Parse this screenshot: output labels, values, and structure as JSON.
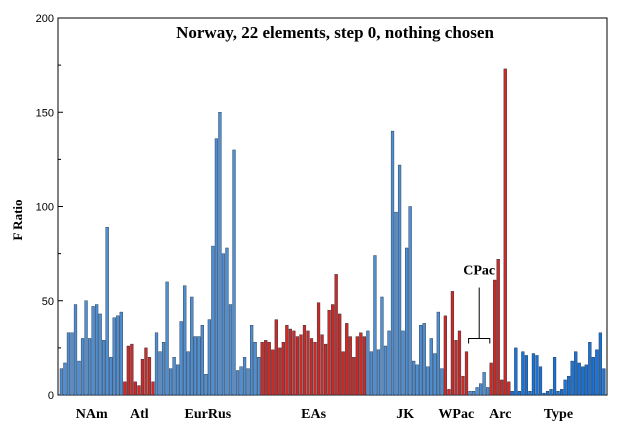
{
  "chart_data": {
    "type": "bar",
    "title": "Norway, 22 elements, step 0, nothing chosen",
    "ylabel": "F Ratio",
    "xlabel": "",
    "ylim": [
      0,
      200
    ],
    "yticks": [
      0,
      50,
      100,
      150,
      200
    ],
    "grid": false,
    "annotation": "CPac",
    "groups": [
      {
        "name": "NAm",
        "color": "#4f8fd1",
        "values": [
          14,
          17,
          33,
          33,
          48,
          18,
          30,
          50,
          30,
          47,
          48,
          43,
          29,
          89,
          20,
          41,
          42,
          44
        ]
      },
      {
        "name": "Atl",
        "color": "#cc2a22",
        "values": [
          7,
          26,
          27,
          7,
          5,
          19,
          25,
          20,
          7
        ]
      },
      {
        "name": "EurRus",
        "color": "#4f8fd1",
        "values": [
          33,
          23,
          28,
          60,
          14,
          20,
          16,
          39,
          58,
          23,
          52,
          31,
          31,
          37,
          11,
          40,
          79,
          136,
          150,
          75,
          78,
          48,
          130,
          13,
          15,
          20,
          14,
          37,
          28,
          20
        ]
      },
      {
        "name": "EAs",
        "color": "#cc2a22",
        "values": [
          28,
          29,
          28,
          24,
          40,
          25,
          28,
          37,
          35,
          34,
          31,
          32,
          37,
          34,
          30,
          28,
          49,
          32,
          27,
          45,
          48,
          64,
          43,
          23,
          38,
          31,
          20,
          31,
          33,
          31
        ]
      },
      {
        "name": "JK",
        "color": "#4f8fd1",
        "values": [
          34,
          23,
          74,
          24,
          52,
          26,
          34,
          140,
          97,
          122,
          34,
          78,
          100,
          18,
          16,
          37,
          38,
          15,
          30,
          22,
          44,
          14
        ]
      },
      {
        "name": "WPac",
        "color": "#cc2a22",
        "values": [
          42,
          3,
          55,
          29,
          34,
          10,
          23
        ]
      },
      {
        "name": "CPac",
        "color": "#4f8fd1",
        "values": [
          2,
          2,
          4,
          6,
          12,
          4
        ]
      },
      {
        "name": "Arc",
        "color": "#cc2a22",
        "values": [
          17,
          61,
          72,
          8,
          173,
          7
        ]
      },
      {
        "name": "Type",
        "color": "#1a72d4",
        "values": [
          2,
          25,
          2,
          23,
          21,
          2,
          22,
          21,
          15,
          1,
          2,
          3,
          20,
          2,
          3,
          8,
          10,
          18,
          23,
          17,
          15,
          16,
          28,
          20,
          24,
          33,
          14
        ]
      }
    ]
  }
}
